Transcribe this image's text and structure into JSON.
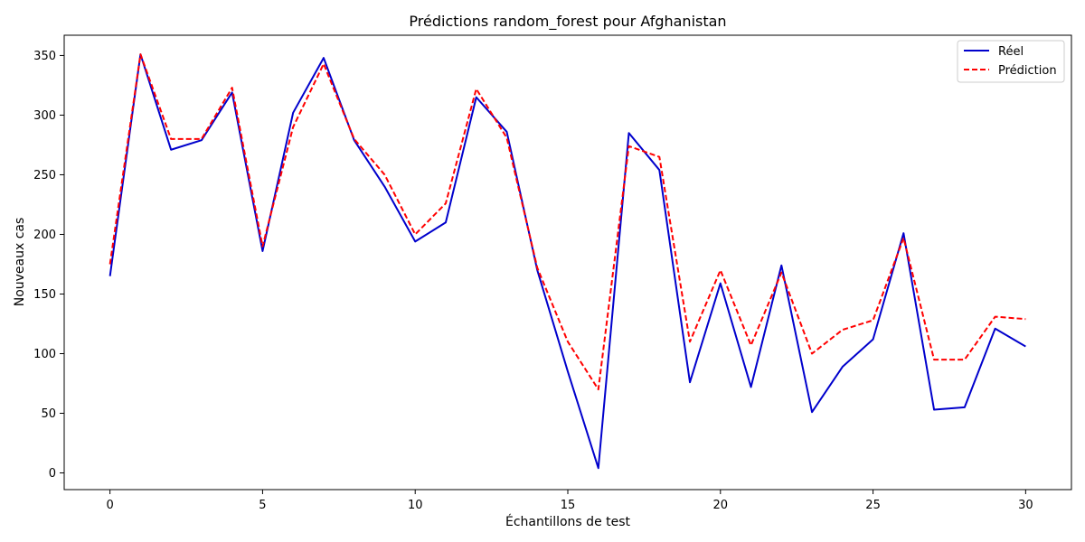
{
  "chart_data": {
    "type": "line",
    "title": "Prédictions random_forest pour Afghanistan",
    "xlabel": "Échantillons de test",
    "ylabel": "Nouveaux cas",
    "xlim": [
      -1.5,
      31.5
    ],
    "ylim": [
      -14,
      367
    ],
    "xticks": [
      0,
      5,
      10,
      15,
      20,
      25,
      30
    ],
    "yticks": [
      0,
      50,
      100,
      150,
      200,
      250,
      300,
      350
    ],
    "grid": false,
    "legend_position": "top-right",
    "x": [
      0,
      1,
      2,
      3,
      4,
      5,
      6,
      7,
      8,
      9,
      10,
      11,
      12,
      13,
      14,
      15,
      16,
      17,
      18,
      19,
      20,
      21,
      22,
      23,
      24,
      25,
      26,
      27,
      28,
      29,
      30
    ],
    "series": [
      {
        "name": "Réel",
        "color": "#0000cc",
        "style": "solid",
        "values": [
          165,
          351,
          271,
          279,
          319,
          186,
          302,
          348,
          279,
          240,
          194,
          210,
          315,
          286,
          170,
          85,
          4,
          285,
          254,
          76,
          159,
          72,
          174,
          51,
          89,
          112,
          201,
          53,
          55,
          121,
          106
        ]
      },
      {
        "name": "Prédiction",
        "color": "#ff0000",
        "style": "dashed",
        "values": [
          175,
          351,
          280,
          280,
          323,
          190,
          290,
          343,
          280,
          250,
          200,
          226,
          322,
          281,
          172,
          110,
          70,
          274,
          265,
          110,
          170,
          107,
          168,
          100,
          120,
          128,
          197,
          95,
          95,
          131,
          129
        ]
      }
    ]
  }
}
